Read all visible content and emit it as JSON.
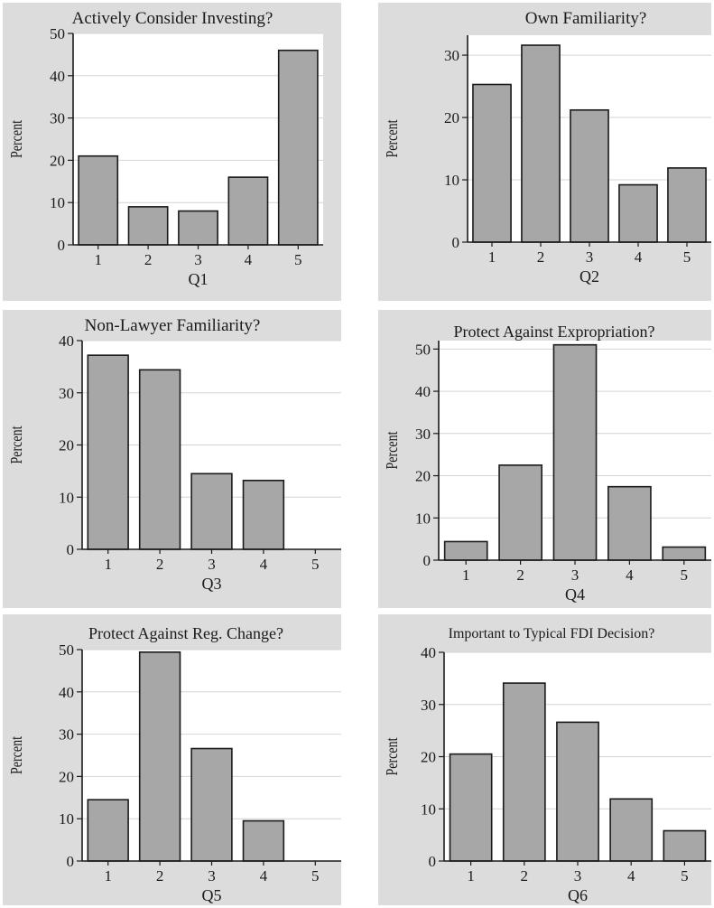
{
  "chart_data": [
    {
      "type": "bar",
      "title": "Actively Consider Investing?",
      "xlabel": "Q1",
      "ylabel": "Percent",
      "categories": [
        "1",
        "2",
        "3",
        "4",
        "5"
      ],
      "values": [
        21,
        9,
        8,
        16,
        46
      ],
      "ylim": [
        0,
        50
      ],
      "yticks": [
        0,
        10,
        20,
        30,
        40,
        50
      ],
      "grid": true,
      "bar_color": "#a7a7a7",
      "background_color": "#dcdcdc"
    },
    {
      "type": "bar",
      "title": "Own Familiarity?",
      "xlabel": "Q2",
      "ylabel": "Percent",
      "categories": [
        "1",
        "2",
        "3",
        "4",
        "5"
      ],
      "values": [
        25.3,
        31.6,
        21.2,
        9.2,
        11.9
      ],
      "ylim": [
        0,
        33.2
      ],
      "yticks": [
        0,
        10,
        20,
        30
      ],
      "grid": true,
      "bar_color": "#a7a7a7",
      "background_color": "#dcdcdc"
    },
    {
      "type": "bar",
      "title": "Non-Lawyer Familiarity?",
      "xlabel": "Q3",
      "ylabel": "Percent",
      "categories": [
        "1",
        "2",
        "3",
        "4",
        "5"
      ],
      "values": [
        37.2,
        34.4,
        14.5,
        13.2,
        0
      ],
      "ylim": [
        0,
        40
      ],
      "yticks": [
        0,
        10,
        20,
        30,
        40
      ],
      "grid": true,
      "bar_color": "#a7a7a7",
      "background_color": "#dcdcdc"
    },
    {
      "type": "bar",
      "title": "Protect Against Expropriation?",
      "xlabel": "Q4",
      "ylabel": "Percent",
      "categories": [
        "1",
        "2",
        "3",
        "4",
        "5"
      ],
      "values": [
        4.4,
        22.5,
        51,
        17.4,
        3.1
      ],
      "ylim": [
        0,
        52
      ],
      "yticks": [
        0,
        10,
        20,
        30,
        40,
        50
      ],
      "grid": true,
      "bar_color": "#a7a7a7",
      "background_color": "#dcdcdc"
    },
    {
      "type": "bar",
      "title": "Protect Against Reg. Change?",
      "xlabel": "Q5",
      "ylabel": "Percent",
      "categories": [
        "1",
        "2",
        "3",
        "4",
        "5"
      ],
      "values": [
        14.5,
        49.4,
        26.6,
        9.5,
        0
      ],
      "ylim": [
        0,
        50
      ],
      "yticks": [
        0,
        10,
        20,
        30,
        40,
        50
      ],
      "grid": true,
      "bar_color": "#a7a7a7",
      "background_color": "#dcdcdc"
    },
    {
      "type": "bar",
      "title": "Important to Typical FDI Decision?",
      "xlabel": "Q6",
      "ylabel": "Percent",
      "categories": [
        "1",
        "2",
        "3",
        "4",
        "5"
      ],
      "values": [
        20.5,
        34.1,
        26.6,
        11.9,
        5.8
      ],
      "ylim": [
        0,
        40
      ],
      "yticks": [
        0,
        10,
        20,
        30,
        40
      ],
      "grid": true,
      "bar_color": "#a7a7a7",
      "background_color": "#dcdcdc"
    }
  ]
}
